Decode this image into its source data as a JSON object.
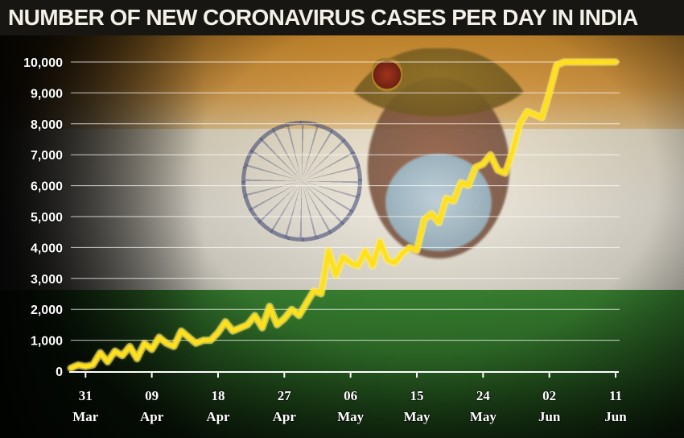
{
  "title": "NUMBER OF NEW CORONAVIRUS CASES PER DAY IN INDIA",
  "colors": {
    "line": "#ffe01b",
    "line_glow": "#fff6a8",
    "gridline": "#ffffff",
    "background_saffron": "#e3a349",
    "background_white": "#f2ece0",
    "background_green": "#2f6f28"
  },
  "chart_data": {
    "type": "line",
    "title": "NUMBER OF NEW CORONAVIRUS CASES PER DAY IN INDIA",
    "xlabel": "",
    "ylabel": "",
    "ylim": [
      0,
      10000
    ],
    "grid": true,
    "legend": "none",
    "y_ticks": [
      {
        "value": 0,
        "label": "0"
      },
      {
        "value": 1000,
        "label": "1,000"
      },
      {
        "value": 2000,
        "label": "2,000"
      },
      {
        "value": 3000,
        "label": "3,000"
      },
      {
        "value": 4000,
        "label": "4,000"
      },
      {
        "value": 5000,
        "label": "5,000"
      },
      {
        "value": 6000,
        "label": "6,000"
      },
      {
        "value": 7000,
        "label": "7,000"
      },
      {
        "value": 8000,
        "label": "8,000"
      },
      {
        "value": 9000,
        "label": "9,000"
      },
      {
        "value": 10000,
        "label": "10,000"
      }
    ],
    "x_ticks": [
      {
        "day": 2,
        "day_label": "31",
        "month_label": "Mar"
      },
      {
        "day": 11,
        "day_label": "09",
        "month_label": "Apr"
      },
      {
        "day": 20,
        "day_label": "18",
        "month_label": "Apr"
      },
      {
        "day": 29,
        "day_label": "27",
        "month_label": "Apr"
      },
      {
        "day": 38,
        "day_label": "06",
        "month_label": "May"
      },
      {
        "day": 47,
        "day_label": "15",
        "month_label": "May"
      },
      {
        "day": 56,
        "day_label": "24",
        "month_label": "May"
      },
      {
        "day": 65,
        "day_label": "02",
        "month_label": "Jun"
      },
      {
        "day": 74,
        "day_label": "11",
        "month_label": "Jun"
      }
    ],
    "x_range": [
      0,
      74
    ],
    "series": [
      {
        "x": [
          0,
          1,
          2,
          3,
          4,
          5,
          6,
          7,
          8,
          9,
          10,
          11,
          12,
          13,
          14,
          15,
          16,
          17,
          18,
          19,
          20,
          21,
          22,
          23,
          24,
          25,
          26,
          27,
          28,
          29,
          30,
          31,
          32,
          33,
          34,
          35,
          36,
          37,
          38,
          39,
          40,
          41,
          42,
          43,
          44,
          45,
          46,
          47,
          48,
          49,
          50,
          51,
          52,
          53,
          54,
          55,
          56,
          57,
          58,
          59,
          60,
          61,
          62,
          63,
          64,
          65,
          66,
          67,
          68,
          69,
          70,
          71,
          72,
          73,
          74
        ],
        "y": [
          100,
          200,
          150,
          200,
          600,
          300,
          650,
          500,
          800,
          400,
          900,
          700,
          1100,
          900,
          800,
          1300,
          1100,
          900,
          1000,
          1000,
          1250,
          1600,
          1300,
          1400,
          1500,
          1800,
          1400,
          2100,
          1500,
          1700,
          2000,
          1800,
          2200,
          2600,
          2500,
          3900,
          3100,
          3700,
          3500,
          3400,
          3900,
          3400,
          4200,
          3600,
          3500,
          3800,
          4000,
          3900,
          4900,
          5100,
          4800,
          5600,
          5500,
          6100,
          6000,
          6600,
          6700,
          7000,
          6500,
          6400,
          7100,
          8000,
          8400,
          8300,
          8200,
          9000,
          9900,
          10000,
          10000,
          10000,
          10000,
          10000,
          10000,
          10000,
          10000
        ]
      }
    ]
  }
}
